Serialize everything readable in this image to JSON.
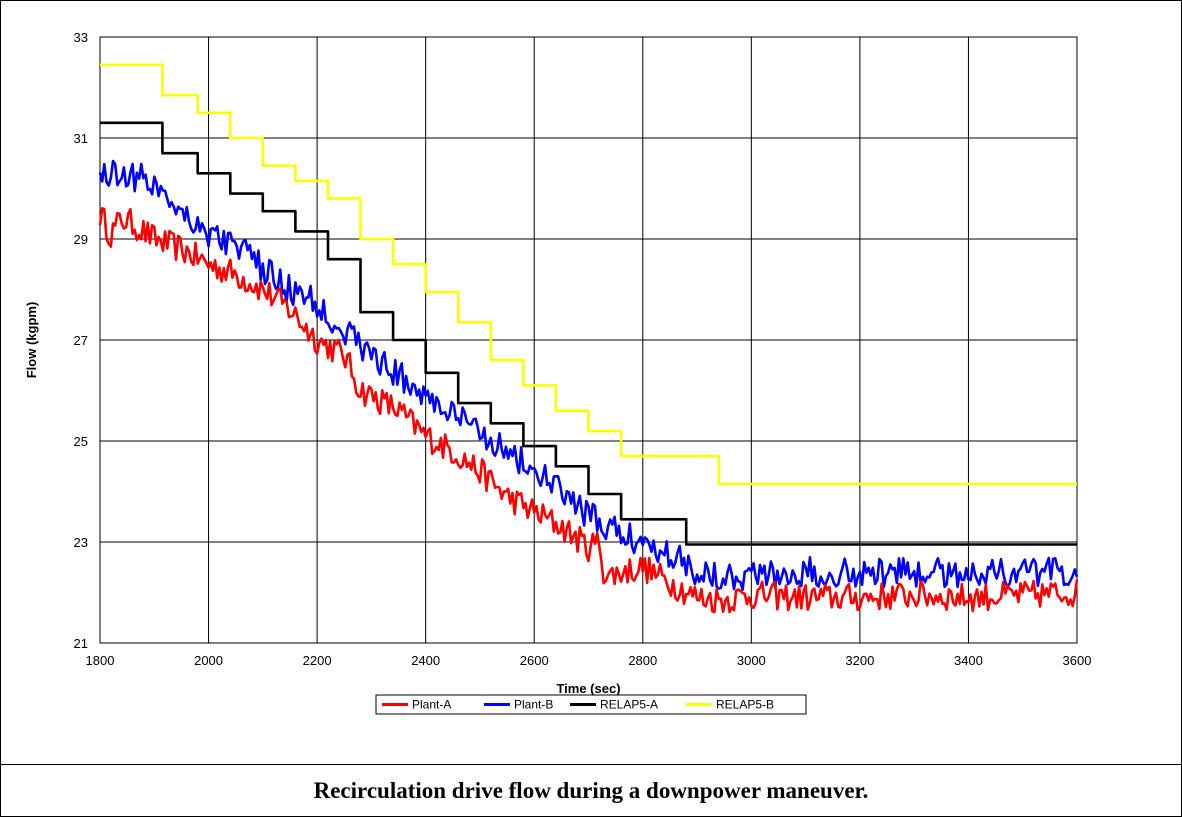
{
  "caption": "Recirculation drive flow during a downpower maneuver.",
  "chart_data": {
    "type": "line",
    "title": "",
    "xlabel": "Time (sec)",
    "ylabel": "Flow (kgpm)",
    "xlim": [
      1800,
      3600
    ],
    "ylim": [
      21,
      33
    ],
    "xticks": [
      1800,
      2000,
      2200,
      2400,
      2600,
      2800,
      3000,
      3200,
      3400,
      3600
    ],
    "yticks": [
      21,
      23,
      25,
      27,
      29,
      31,
      33
    ],
    "grid": true,
    "legend_position": "bottom-center",
    "series": [
      {
        "name": "Plant-A",
        "color": "#ff0000",
        "noise": 0.28,
        "x": [
          1800,
          1820,
          1840,
          1860,
          1900,
          1950,
          2000,
          2050,
          2100,
          2150,
          2200,
          2250,
          2280,
          2300,
          2350,
          2400,
          2450,
          2500,
          2550,
          2600,
          2650,
          2700,
          2720,
          2730,
          2760,
          2800,
          2850,
          2900,
          2950,
          3000,
          3100,
          3200,
          3300,
          3400,
          3500,
          3600
        ],
        "y": [
          29.5,
          29.1,
          29.4,
          29.3,
          29.0,
          28.8,
          28.5,
          28.3,
          28.0,
          27.6,
          27.0,
          26.7,
          26.0,
          25.9,
          25.6,
          25.1,
          24.8,
          24.4,
          23.9,
          23.6,
          23.3,
          22.9,
          23.0,
          22.3,
          22.4,
          22.5,
          22.2,
          21.9,
          21.85,
          21.95,
          21.9,
          21.9,
          21.95,
          21.9,
          21.95,
          22.0
        ]
      },
      {
        "name": "Plant-B",
        "color": "#0000ff",
        "noise": 0.3,
        "x": [
          1800,
          1850,
          1900,
          1950,
          2000,
          2050,
          2100,
          2150,
          2200,
          2250,
          2300,
          2350,
          2400,
          2450,
          2500,
          2550,
          2600,
          2650,
          2700,
          2750,
          2800,
          2850,
          2880,
          2900,
          2950,
          3000,
          3100,
          3200,
          3300,
          3400,
          3500,
          3600
        ],
        "y": [
          30.3,
          30.3,
          30.1,
          29.6,
          29.1,
          28.9,
          28.4,
          28.0,
          27.7,
          27.2,
          26.7,
          26.3,
          25.9,
          25.5,
          25.2,
          24.8,
          24.4,
          24.0,
          23.5,
          23.2,
          23.0,
          22.8,
          22.6,
          22.4,
          22.35,
          22.35,
          22.4,
          22.4,
          22.4,
          22.4,
          22.4,
          22.4
        ]
      },
      {
        "name": "RELAP5-A",
        "color": "#000000",
        "steps": [
          [
            1800,
            31.3
          ],
          [
            1915,
            30.7
          ],
          [
            1980,
            30.3
          ],
          [
            2040,
            29.9
          ],
          [
            2100,
            29.55
          ],
          [
            2160,
            29.15
          ],
          [
            2220,
            28.6
          ],
          [
            2280,
            27.55
          ],
          [
            2340,
            27.0
          ],
          [
            2400,
            26.35
          ],
          [
            2460,
            25.75
          ],
          [
            2520,
            25.35
          ],
          [
            2580,
            24.9
          ],
          [
            2640,
            24.5
          ],
          [
            2700,
            23.95
          ],
          [
            2760,
            23.45
          ],
          [
            2880,
            22.95
          ],
          [
            3600,
            22.95
          ]
        ]
      },
      {
        "name": "RELAP5-B",
        "color": "#ffff00",
        "steps": [
          [
            1800,
            32.45
          ],
          [
            1915,
            31.85
          ],
          [
            1980,
            31.5
          ],
          [
            2040,
            31.0
          ],
          [
            2100,
            30.45
          ],
          [
            2160,
            30.15
          ],
          [
            2220,
            29.8
          ],
          [
            2280,
            29.0
          ],
          [
            2340,
            28.5
          ],
          [
            2400,
            27.95
          ],
          [
            2460,
            27.35
          ],
          [
            2520,
            26.6
          ],
          [
            2580,
            26.1
          ],
          [
            2640,
            25.6
          ],
          [
            2700,
            25.2
          ],
          [
            2760,
            24.7
          ],
          [
            2940,
            24.15
          ],
          [
            3600,
            24.15
          ]
        ]
      }
    ]
  }
}
